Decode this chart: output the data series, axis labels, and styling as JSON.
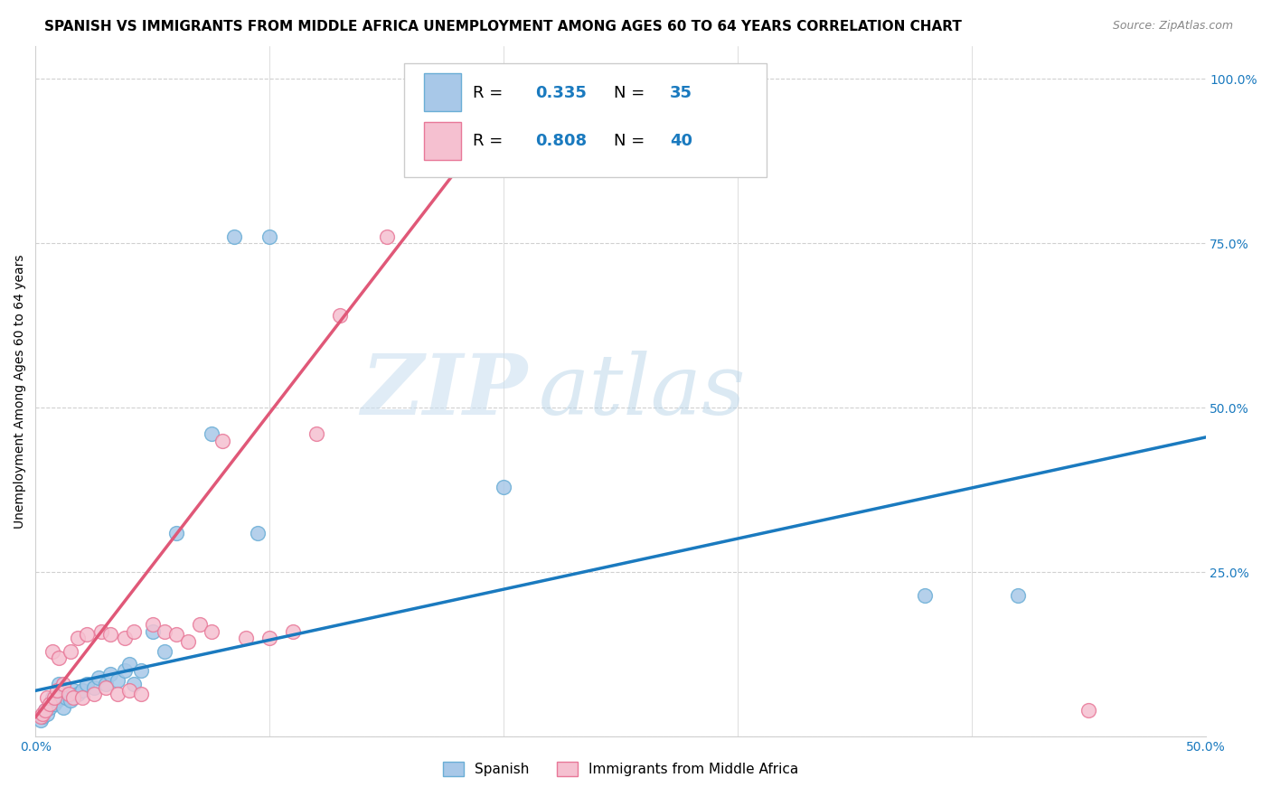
{
  "title": "SPANISH VS IMMIGRANTS FROM MIDDLE AFRICA UNEMPLOYMENT AMONG AGES 60 TO 64 YEARS CORRELATION CHART",
  "source": "Source: ZipAtlas.com",
  "xlabel": "",
  "ylabel": "Unemployment Among Ages 60 to 64 years",
  "xlim": [
    0.0,
    0.5
  ],
  "ylim": [
    0.0,
    1.05
  ],
  "xticks": [
    0.0,
    0.1,
    0.2,
    0.3,
    0.4,
    0.5
  ],
  "xticklabels": [
    "0.0%",
    "",
    "",
    "",
    "",
    "50.0%"
  ],
  "yticks": [
    0.0,
    0.25,
    0.5,
    0.75,
    1.0
  ],
  "yticklabels_right": [
    "",
    "25.0%",
    "50.0%",
    "75.0%",
    "100.0%"
  ],
  "watermark_zip": "ZIP",
  "watermark_atlas": "atlas",
  "spanish_color": "#a8c8e8",
  "spanish_edge_color": "#6aaed6",
  "spanish_line_color": "#1a7abf",
  "immigrants_color": "#f5c0d0",
  "immigrants_edge_color": "#e87898",
  "immigrants_line_color": "#e05878",
  "spanish_scatter_x": [
    0.002,
    0.003,
    0.004,
    0.005,
    0.006,
    0.007,
    0.008,
    0.009,
    0.01,
    0.01,
    0.012,
    0.013,
    0.015,
    0.016,
    0.018,
    0.02,
    0.022,
    0.025,
    0.027,
    0.03,
    0.032,
    0.035,
    0.038,
    0.04,
    0.042,
    0.045,
    0.05,
    0.055,
    0.06,
    0.075,
    0.085,
    0.095,
    0.1,
    0.2,
    0.38,
    0.42
  ],
  "spanish_scatter_y": [
    0.025,
    0.03,
    0.04,
    0.035,
    0.045,
    0.06,
    0.05,
    0.055,
    0.06,
    0.08,
    0.045,
    0.06,
    0.055,
    0.07,
    0.065,
    0.07,
    0.08,
    0.075,
    0.09,
    0.08,
    0.095,
    0.085,
    0.1,
    0.11,
    0.08,
    0.1,
    0.16,
    0.13,
    0.31,
    0.46,
    0.76,
    0.31,
    0.76,
    0.38,
    0.215,
    0.215
  ],
  "immigrants_scatter_x": [
    0.002,
    0.003,
    0.004,
    0.005,
    0.006,
    0.007,
    0.008,
    0.009,
    0.01,
    0.012,
    0.014,
    0.015,
    0.016,
    0.018,
    0.02,
    0.022,
    0.025,
    0.028,
    0.03,
    0.032,
    0.035,
    0.038,
    0.04,
    0.042,
    0.045,
    0.05,
    0.055,
    0.06,
    0.065,
    0.07,
    0.075,
    0.08,
    0.09,
    0.1,
    0.11,
    0.12,
    0.13,
    0.15,
    0.175,
    0.45
  ],
  "immigrants_scatter_y": [
    0.03,
    0.035,
    0.04,
    0.06,
    0.05,
    0.13,
    0.06,
    0.07,
    0.12,
    0.08,
    0.065,
    0.13,
    0.06,
    0.15,
    0.06,
    0.155,
    0.065,
    0.16,
    0.075,
    0.155,
    0.065,
    0.15,
    0.07,
    0.16,
    0.065,
    0.17,
    0.16,
    0.155,
    0.145,
    0.17,
    0.16,
    0.45,
    0.15,
    0.15,
    0.16,
    0.46,
    0.64,
    0.76,
    0.97,
    0.04
  ],
  "spanish_line_x0": 0.0,
  "spanish_line_x1": 0.5,
  "spanish_line_y0": 0.07,
  "spanish_line_y1": 0.455,
  "immigrants_line_x0": 0.0,
  "immigrants_line_x1": 0.21,
  "immigrants_line_y0": 0.03,
  "immigrants_line_y1": 1.0,
  "background_color": "#ffffff",
  "grid_color": "#d0d0d0",
  "title_fontsize": 11,
  "axis_label_fontsize": 10,
  "tick_fontsize": 10,
  "legend_fontsize": 13
}
